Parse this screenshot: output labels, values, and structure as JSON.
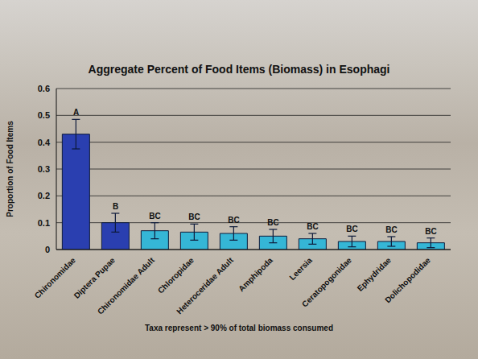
{
  "chart_data": {
    "type": "bar",
    "title": "Aggregate Percent of Food Items (Biomass) in Esophagi",
    "y_label": "Proportion of Food Items",
    "categories": [
      "Chironomidae",
      "Diptera Pupae",
      "Chironomidae Adult",
      "Chloropidae",
      "Heteroceridae Adult",
      "Amphipoda",
      "Leersia",
      "Ceratopogonidae",
      "Ephydridae",
      "Dolichopodidae"
    ],
    "values": [
      0.43,
      0.1,
      0.07,
      0.065,
      0.06,
      0.05,
      0.04,
      0.03,
      0.03,
      0.025
    ],
    "errors": [
      0.055,
      0.035,
      0.03,
      0.03,
      0.025,
      0.025,
      0.02,
      0.02,
      0.018,
      0.018
    ],
    "letters": [
      "A",
      "B",
      "BC",
      "BC",
      "BC",
      "BC",
      "BC",
      "BC",
      "BC",
      "BC"
    ],
    "colors": [
      "#2a3fb0",
      "#2a3fb0",
      "#35b6d6",
      "#35b6d6",
      "#35b6d6",
      "#35b6d6",
      "#35b6d6",
      "#35b6d6",
      "#35b6d6",
      "#35b6d6"
    ],
    "ylim": [
      0,
      0.6
    ],
    "yticks": [
      0,
      0.1,
      0.2,
      0.3,
      0.4,
      0.5,
      0.6
    ],
    "grid": true,
    "annotations": [
      "Taxa represent > 90% of total biomass consumed"
    ]
  }
}
